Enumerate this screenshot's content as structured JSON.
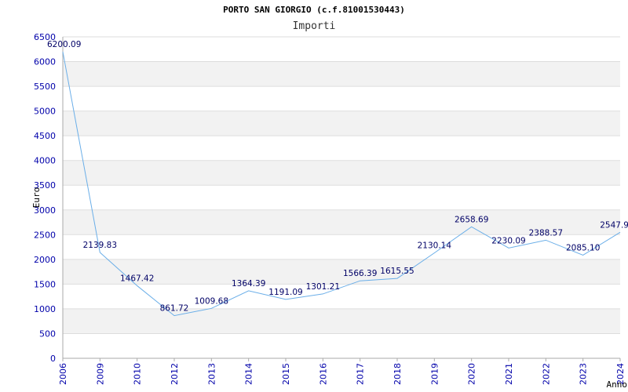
{
  "chart_data": {
    "type": "line",
    "title": "PORTO SAN GIORGIO (c.f.81001530443)",
    "subtitle": "Importi",
    "ylabel": "Euro",
    "xlabel": "Anno",
    "x": [
      "2006",
      "2009",
      "2010",
      "2012",
      "2013",
      "2014",
      "2015",
      "2016",
      "2017",
      "2018",
      "2019",
      "2020",
      "2021",
      "2022",
      "2023",
      "2024"
    ],
    "values": [
      6200.09,
      2139.83,
      1467.42,
      861.72,
      1009.68,
      1364.39,
      1191.09,
      1301.21,
      1566.39,
      1615.55,
      2130.14,
      2658.69,
      2230.09,
      2388.57,
      2085.1,
      2547.9
    ],
    "value_labels": [
      "6200.09",
      "2139.83",
      "1467.42",
      "861.72",
      "1009.68",
      "1364.39",
      "1191.09",
      "1301.21",
      "1566.39",
      "1615.55",
      "2130.14",
      "2658.69",
      "2230.09",
      "2388.57",
      "2085.10",
      "2547.9"
    ],
    "y_ticks": [
      0,
      500,
      1000,
      1500,
      2000,
      2500,
      3000,
      3500,
      4000,
      4500,
      5000,
      5500,
      6000,
      6500
    ],
    "ylim": [
      0,
      6500
    ],
    "grid": true,
    "legend": "none",
    "colors": {
      "line": "#6aaee8",
      "band": "#f2f2f2",
      "gridline": "#dddddd",
      "axis": "#aaaaaa",
      "tick_text": "#0000aa",
      "data_text": "#000066"
    }
  }
}
